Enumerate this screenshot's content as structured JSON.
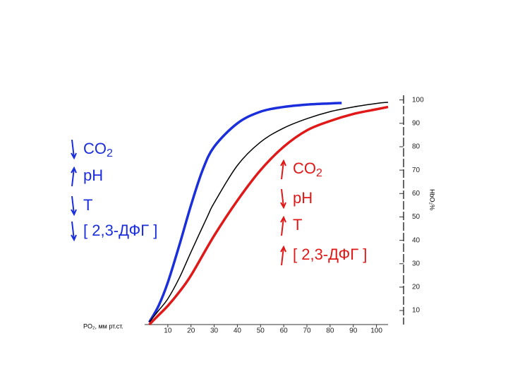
{
  "chart_data": {
    "type": "line",
    "x_label": "PO₂, мм рт.ст.",
    "y_label": "HbO₂%",
    "xlim": [
      0,
      105
    ],
    "ylim": [
      4,
      102
    ],
    "xticks": [
      10,
      20,
      30,
      40,
      50,
      60,
      70,
      80,
      90,
      100
    ],
    "yticks": [
      10,
      20,
      30,
      40,
      50,
      60,
      70,
      80,
      90,
      100
    ],
    "series": [
      {
        "color": "#1a2edc",
        "x": [
          2,
          6,
          10,
          15,
          20,
          25,
          30,
          40,
          50,
          60,
          70,
          80,
          85
        ],
        "values": [
          5,
          12,
          22,
          38,
          55,
          70,
          80,
          90,
          95,
          97,
          98,
          98.5,
          98.7
        ]
      },
      {
        "color": "#000000",
        "x": [
          2,
          6,
          10,
          15,
          20,
          27,
          30,
          40,
          50,
          60,
          70,
          80,
          90,
          100,
          105
        ],
        "values": [
          5,
          10,
          15,
          24,
          35,
          50,
          56,
          72,
          82,
          88,
          92,
          95,
          97,
          98.5,
          99
        ]
      },
      {
        "color": "#e01818",
        "x": [
          2,
          6,
          10,
          15,
          20,
          30,
          40,
          50,
          60,
          70,
          80,
          90,
          100,
          105
        ],
        "values": [
          4,
          8,
          12,
          18,
          25,
          42,
          57,
          70,
          80,
          87,
          91,
          94,
          96,
          97
        ]
      }
    ],
    "annotations": [
      {
        "color": "#1a2edc",
        "items": [
          {
            "text": "CO",
            "sub": "2",
            "arrow": "down"
          },
          {
            "text": "pH",
            "arrow": "up"
          },
          {
            "text": "T",
            "arrow": "down"
          },
          {
            "text": "[ 2,3-ДФГ ]",
            "arrow": "down"
          }
        ]
      },
      {
        "color": "#e01818",
        "items": [
          {
            "text": "CO",
            "sub": "2",
            "arrow": "up"
          },
          {
            "text": "pH",
            "arrow": "down"
          },
          {
            "text": "T",
            "arrow": "up"
          },
          {
            "text": "[ 2,3-ДФГ ]",
            "arrow": "up"
          }
        ]
      }
    ]
  }
}
